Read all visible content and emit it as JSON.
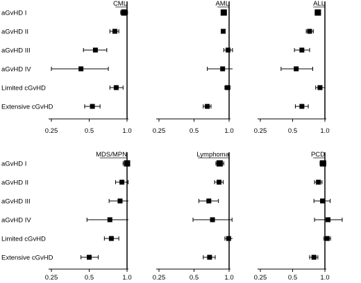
{
  "chart_data": [
    {
      "type": "scatter",
      "title": "CML",
      "categories": [
        "aGvHD I",
        "aGvHD II",
        "aGvHD III",
        "aGvHD IV",
        "Limited cGvHD",
        "Extensive cGvHD"
      ],
      "estimates": [
        0.95,
        0.8,
        0.56,
        0.43,
        0.82,
        0.53
      ],
      "ci_low": [
        0.89,
        0.73,
        0.45,
        0.25,
        0.73,
        0.46
      ],
      "ci_high": [
        1.01,
        0.86,
        0.69,
        0.71,
        0.93,
        0.61
      ],
      "x_ticks": [
        "0.25",
        "0.5",
        "1.0"
      ],
      "xlim": [
        0.25,
        1.0
      ],
      "x_scale": "log",
      "reference_line": 1.0
    },
    {
      "type": "scatter",
      "title": "AML",
      "categories": [
        "aGvHD I",
        "aGvHD II",
        "aGvHD III",
        "aGvHD IV",
        "Limited cGvHD",
        "Extensive cGvHD"
      ],
      "estimates": [
        0.9,
        0.89,
        0.98,
        0.88,
        0.97,
        0.65
      ],
      "ci_low": [
        0.87,
        0.86,
        0.9,
        0.65,
        0.92,
        0.6
      ],
      "ci_high": [
        0.93,
        0.92,
        1.07,
        1.15,
        1.02,
        0.7
      ],
      "x_ticks": [
        "0.25",
        "0.5",
        "1.0"
      ],
      "xlim": [
        0.25,
        1.0
      ],
      "x_scale": "log",
      "reference_line": 1.0
    },
    {
      "type": "scatter",
      "title": "ALL",
      "categories": [
        "aGvHD I",
        "aGvHD II",
        "aGvHD III",
        "aGvHD IV",
        "Limited cGvHD",
        "Extensive cGvHD"
      ],
      "estimates": [
        0.86,
        0.72,
        0.61,
        0.54,
        0.9,
        0.61
      ],
      "ci_low": [
        0.81,
        0.67,
        0.52,
        0.39,
        0.82,
        0.53
      ],
      "ci_high": [
        0.91,
        0.78,
        0.72,
        0.77,
        1.0,
        0.7
      ],
      "x_ticks": [
        "0.25",
        "0.5",
        "1.0"
      ],
      "xlim": [
        0.25,
        1.0
      ],
      "x_scale": "log",
      "reference_line": 1.0
    },
    {
      "type": "scatter",
      "title": "MDS/MPN",
      "categories": [
        "aGvHD I",
        "aGvHD II",
        "aGvHD III",
        "aGvHD IV",
        "Limited cGvHD",
        "Extensive cGvHD"
      ],
      "estimates": [
        1.0,
        0.91,
        0.88,
        0.73,
        0.75,
        0.5
      ],
      "ci_low": [
        0.93,
        0.81,
        0.72,
        0.48,
        0.66,
        0.43
      ],
      "ci_high": [
        1.08,
        1.02,
        1.06,
        1.1,
        0.86,
        0.59
      ],
      "x_ticks": [
        "0.25",
        "0.5",
        "1.0"
      ],
      "xlim": [
        0.25,
        1.0
      ],
      "x_scale": "log",
      "reference_line": 1.0
    },
    {
      "type": "scatter",
      "title": "Lymphoma",
      "categories": [
        "aGvHD I",
        "aGvHD II",
        "aGvHD III",
        "aGvHD IV",
        "Limited cGvHD",
        "Extensive cGvHD"
      ],
      "estimates": [
        0.83,
        0.82,
        0.67,
        0.72,
        0.99,
        0.68
      ],
      "ci_low": [
        0.77,
        0.75,
        0.55,
        0.49,
        0.92,
        0.6
      ],
      "ci_high": [
        0.9,
        0.89,
        0.81,
        1.06,
        1.08,
        0.76
      ],
      "x_ticks": [
        "0.25",
        "0.5",
        "1.0"
      ],
      "xlim": [
        0.25,
        1.0
      ],
      "x_scale": "log",
      "reference_line": 1.0
    },
    {
      "type": "scatter",
      "title": "PCD",
      "categories": [
        "aGvHD I",
        "aGvHD II",
        "aGvHD III",
        "aGvHD IV",
        "Limited cGvHD",
        "Extensive cGvHD"
      ],
      "estimates": [
        0.96,
        0.87,
        0.95,
        1.07,
        1.05,
        0.79
      ],
      "ci_low": [
        0.9,
        0.8,
        0.79,
        0.8,
        0.98,
        0.72
      ],
      "ci_high": [
        1.02,
        0.94,
        1.12,
        1.45,
        1.13,
        0.86
      ],
      "x_ticks": [
        "0.25",
        "0.5",
        "1.0"
      ],
      "xlim": [
        0.25,
        1.0
      ],
      "x_scale": "log",
      "reference_line": 1.0
    }
  ]
}
